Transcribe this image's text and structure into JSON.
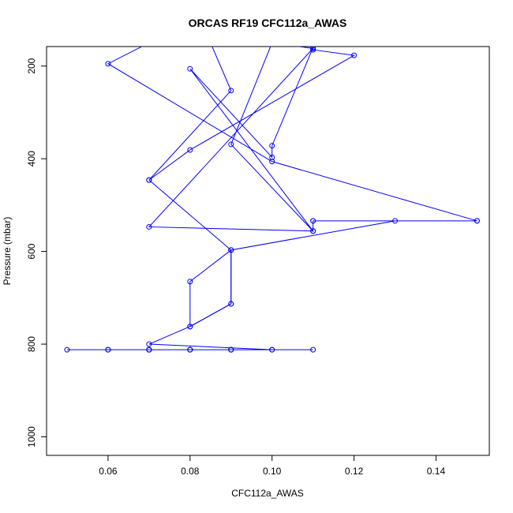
{
  "chart_data": {
    "type": "line",
    "title": "ORCAS RF19 CFC112a_AWAS",
    "xlabel": "CFC112a_AWAS",
    "ylabel": "Pressure (mbar)",
    "xlim": [
      0.045,
      0.153
    ],
    "ylim": [
      1040,
      158
    ],
    "y_reversed": true,
    "grid": false,
    "x_ticks": [
      0.06,
      0.08,
      0.1,
      0.12,
      0.14
    ],
    "x_tick_labels": [
      "0.06",
      "0.08",
      "0.10",
      "0.12",
      "0.14"
    ],
    "y_ticks": [
      200,
      400,
      600,
      800,
      1000
    ],
    "y_tick_labels": [
      "200",
      "400",
      "600",
      "800",
      "1000"
    ],
    "series": [
      {
        "color": "#0000ff",
        "marker": "open-circle",
        "points": [
          [
            0.11,
            812
          ],
          [
            0.1,
            812
          ],
          [
            0.09,
            812
          ],
          [
            0.08,
            812
          ],
          [
            0.07,
            812
          ],
          [
            0.06,
            812
          ],
          [
            0.05,
            812
          ],
          [
            0.09,
            812
          ],
          [
            0.08,
            812
          ],
          [
            0.07,
            812
          ],
          [
            0.06,
            812
          ],
          [
            0.07,
            812
          ],
          [
            0.08,
            812
          ],
          [
            0.09,
            812
          ],
          [
            0.07,
            812
          ],
          [
            0.1,
            812
          ],
          [
            0.07,
            800
          ],
          [
            0.08,
            762
          ],
          [
            0.09,
            713
          ],
          [
            0.09,
            597
          ],
          [
            0.13,
            534
          ],
          [
            0.11,
            534
          ],
          [
            0.15,
            534
          ],
          [
            0.1,
            406
          ],
          [
            0.06,
            195
          ],
          [
            0.07,
            150
          ],
          [
            0.085,
            150
          ],
          [
            0.09,
            253
          ],
          [
            0.07,
            446
          ],
          [
            0.08,
            381
          ],
          [
            0.12,
            177
          ],
          [
            0.11,
            165
          ],
          [
            0.11,
            160
          ],
          [
            0.1,
            372
          ],
          [
            0.1,
            397
          ],
          [
            0.08,
            206
          ],
          [
            0.11,
            556
          ],
          [
            0.07,
            547
          ],
          [
            0.11,
            162
          ],
          [
            0.1,
            150
          ],
          [
            0.09,
            369
          ],
          [
            0.11,
            556
          ],
          [
            0.11,
            534
          ],
          [
            0.15,
            534
          ]
        ]
      },
      {
        "color": "#0000ff",
        "marker": "open-circle",
        "points": [
          [
            0.09,
            597
          ],
          [
            0.09,
            713
          ],
          [
            0.08,
            762
          ],
          [
            0.08,
            665
          ],
          [
            0.09,
            597
          ],
          [
            0.07,
            446
          ]
        ]
      }
    ]
  }
}
